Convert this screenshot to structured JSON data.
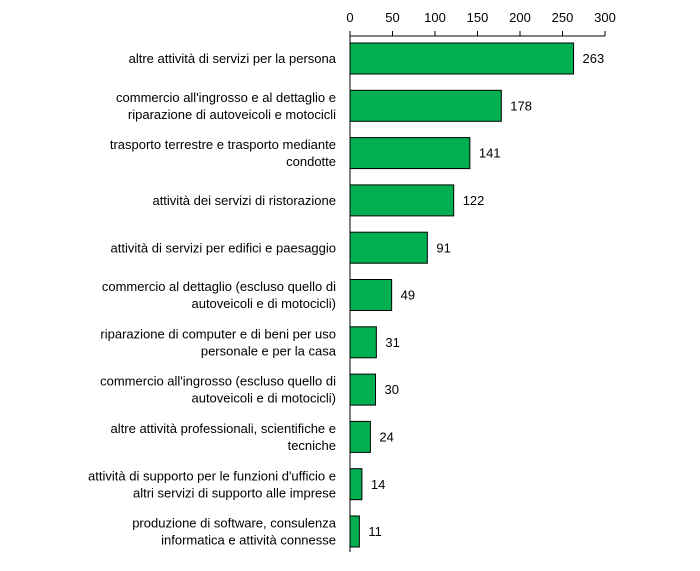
{
  "chart_data": {
    "type": "bar",
    "orientation": "horizontal",
    "x_axis_position": "top",
    "xlim": [
      0,
      300
    ],
    "xticks": [
      "0",
      "50",
      "100",
      "150",
      "200",
      "250",
      "300"
    ],
    "grid": false,
    "legend": "none",
    "bar_color": "#00b050",
    "bar_border_color": "#000000",
    "categories": [
      [
        "altre attività di servizi per la persona"
      ],
      [
        "commercio all'ingrosso e al dettaglio e",
        "riparazione di autoveicoli e motocicli"
      ],
      [
        "trasporto terrestre e trasporto mediante",
        "condotte"
      ],
      [
        "attività dei servizi di ristorazione"
      ],
      [
        "attività di servizi per edifici e paesaggio"
      ],
      [
        "commercio al dettaglio (escluso quello di",
        "autoveicoli e di motocicli)"
      ],
      [
        "riparazione di computer e di beni per uso",
        "personale e per la casa"
      ],
      [
        "commercio all'ingrosso (escluso quello di",
        "autoveicoli e di motocicli)"
      ],
      [
        "altre attività professionali, scientifiche e",
        "tecniche"
      ],
      [
        "attività di supporto per le funzioni d'ufficio e",
        "altri servizi di supporto alle imprese"
      ],
      [
        "produzione di software, consulenza",
        "informatica e attività connesse"
      ]
    ],
    "values": [
      263,
      178,
      141,
      122,
      91,
      49,
      31,
      30,
      24,
      14,
      11
    ],
    "data_labels": [
      "263",
      "178",
      "141",
      "122",
      "91",
      "49",
      "31",
      "30",
      "24",
      "14",
      "11"
    ]
  }
}
